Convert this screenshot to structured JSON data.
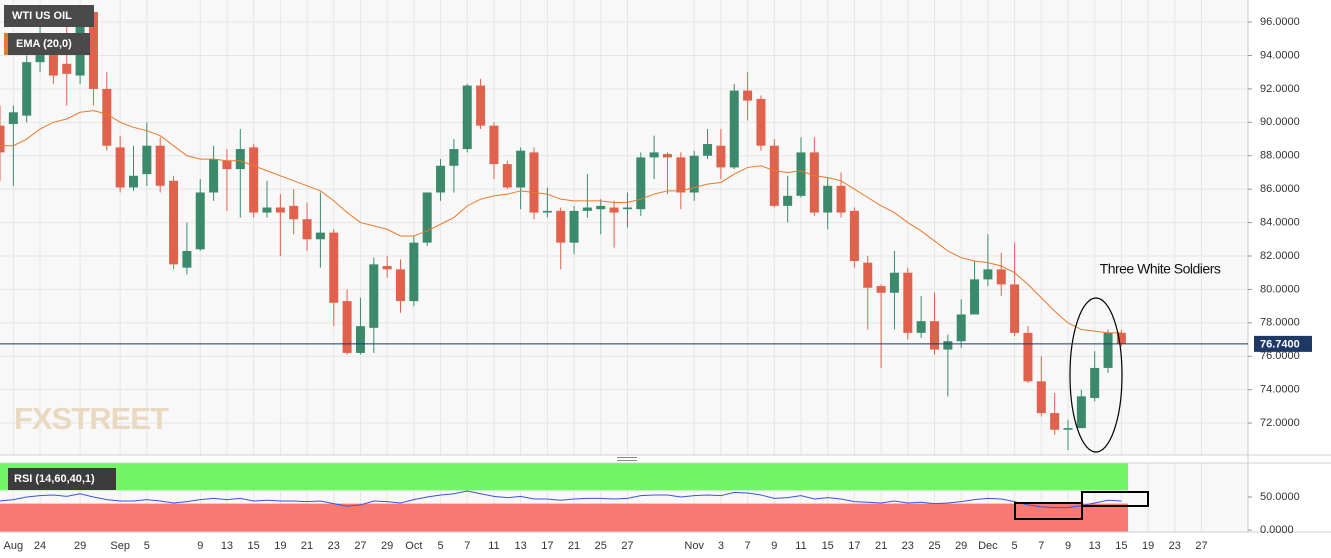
{
  "chart_data": [
    {
      "type": "candlestick",
      "name": "WTI US OIL",
      "watermark": "FXSTREET",
      "annotation": "Three White Soldiers",
      "categories": [
        null,
        "Aug",
        null,
        "24",
        null,
        null,
        "29",
        null,
        null,
        "Sep",
        null,
        "5",
        null,
        null,
        null,
        "9",
        null,
        "13",
        null,
        "15",
        null,
        "19",
        null,
        "21",
        null,
        "23",
        null,
        "27",
        null,
        "29",
        null,
        "Oct",
        null,
        "5",
        null,
        "7",
        null,
        "11",
        null,
        "13",
        null,
        "17",
        null,
        "21",
        null,
        "25",
        null,
        "27",
        null,
        null,
        null,
        null,
        "Nov",
        null,
        "3",
        null,
        "7",
        null,
        "9",
        null,
        "11",
        null,
        "15",
        null,
        "17",
        null,
        "21",
        null,
        "23",
        null,
        "25",
        null,
        "29",
        null,
        "Dec",
        null,
        "5",
        null,
        "7",
        null,
        "9",
        null,
        "13",
        null,
        "15",
        null,
        "19",
        null,
        "23",
        null,
        "27",
        null,
        null,
        null
      ],
      "open": [
        89.8,
        89.9,
        90.4,
        93.6,
        94.9,
        93.5,
        92.8,
        96.6,
        92.0,
        88.5,
        86.1,
        86.9,
        88.6,
        86.5,
        81.3,
        82.4,
        85.8,
        87.7,
        87.2,
        88.5,
        84.6,
        84.9,
        85.0,
        84.2,
        83.0,
        83.4,
        79.3,
        76.2,
        77.7,
        81.4,
        81.2,
        79.3,
        82.8,
        85.8,
        87.4,
        88.4,
        92.2,
        89.8,
        87.5,
        86.1,
        88.2,
        84.6,
        84.7,
        82.8,
        84.7,
        84.8,
        84.9,
        84.8,
        84.8,
        87.9,
        88.1,
        87.9,
        85.8,
        88.0,
        88.6,
        87.3,
        91.9,
        91.4,
        88.6,
        85.0,
        85.6,
        88.2,
        84.6,
        86.2,
        84.7,
        81.6,
        80.2,
        79.8,
        81.0,
        77.4,
        78.1,
        76.4,
        76.9,
        78.5,
        80.6,
        81.2,
        80.3,
        77.4,
        74.5,
        72.6,
        71.6,
        71.7,
        73.5,
        75.3,
        77.4,
        null,
        null,
        null,
        null,
        null,
        null,
        null,
        null,
        null
      ],
      "high": [
        91.0,
        91.0,
        94.0,
        96.0,
        95.3,
        95.8,
        96.6,
        96.9,
        93.0,
        89.2,
        88.6,
        90.0,
        89.1,
        86.8,
        84.0,
        86.6,
        88.6,
        88.4,
        89.6,
        88.7,
        86.5,
        85.7,
        86.0,
        85.2,
        85.8,
        83.6,
        80.0,
        79.5,
        81.9,
        82.0,
        81.8,
        83.2,
        85.8,
        87.8,
        89.0,
        92.3,
        92.6,
        90.0,
        87.7,
        88.5,
        88.5,
        86.1,
        84.9,
        85.0,
        86.9,
        85.4,
        85.3,
        85.8,
        88.2,
        89.2,
        88.2,
        88.2,
        88.3,
        89.6,
        89.6,
        92.3,
        93.0,
        91.6,
        89.0,
        86.8,
        89.1,
        89.1,
        86.7,
        87.0,
        84.9,
        82.0,
        80.3,
        82.3,
        81.3,
        79.6,
        79.8,
        77.3,
        79.4,
        81.7,
        83.3,
        82.2,
        82.8,
        77.8,
        76.0,
        73.8,
        72.2,
        74.0,
        76.3,
        77.6,
        77.6,
        null,
        null,
        null,
        null,
        null,
        null,
        null,
        null,
        null
      ],
      "low": [
        86.5,
        86.2,
        90.0,
        93.0,
        92.3,
        91.0,
        92.3,
        91.0,
        88.3,
        85.8,
        85.9,
        86.2,
        85.8,
        81.2,
        80.9,
        82.3,
        85.3,
        84.7,
        84.3,
        84.3,
        84.3,
        82.0,
        83.3,
        82.3,
        81.3,
        77.8,
        76.1,
        76.1,
        76.2,
        80.7,
        78.6,
        79.0,
        82.6,
        85.3,
        85.8,
        88.2,
        89.6,
        86.6,
        86.0,
        84.8,
        84.2,
        84.3,
        81.2,
        82.1,
        84.3,
        83.3,
        82.5,
        83.7,
        84.4,
        86.6,
        85.7,
        84.8,
        85.3,
        87.8,
        86.6,
        87.2,
        90.1,
        88.3,
        84.9,
        84.0,
        85.5,
        84.4,
        83.6,
        84.3,
        81.3,
        77.6,
        75.3,
        77.6,
        77.0,
        77.1,
        76.1,
        73.6,
        76.5,
        78.5,
        80.2,
        79.6,
        77.2,
        74.4,
        72.4,
        71.3,
        70.4,
        71.7,
        73.3,
        75.0,
        76.6,
        null,
        null,
        null,
        null,
        null,
        null,
        null,
        null,
        null
      ],
      "close": [
        88.2,
        90.6,
        93.6,
        94.9,
        92.8,
        92.9,
        96.4,
        92.0,
        88.6,
        86.1,
        86.8,
        88.6,
        86.2,
        81.5,
        82.3,
        85.8,
        87.8,
        87.2,
        88.4,
        84.6,
        84.9,
        84.6,
        84.2,
        83.0,
        83.4,
        79.2,
        76.2,
        77.8,
        81.5,
        81.2,
        79.3,
        82.8,
        85.8,
        87.4,
        88.4,
        92.2,
        89.8,
        87.5,
        86.1,
        88.3,
        84.6,
        84.7,
        82.8,
        84.7,
        84.9,
        85.0,
        84.6,
        84.9,
        87.9,
        88.2,
        87.9,
        85.8,
        88.0,
        88.7,
        87.3,
        91.9,
        91.3,
        88.6,
        85.0,
        85.6,
        88.2,
        84.6,
        86.2,
        84.6,
        81.7,
        80.1,
        79.8,
        81.0,
        77.4,
        78.1,
        76.4,
        76.9,
        78.5,
        80.6,
        81.2,
        80.3,
        77.4,
        74.5,
        72.6,
        71.6,
        71.7,
        73.6,
        75.3,
        77.4,
        76.74,
        null,
        null,
        null,
        null,
        null,
        null,
        null,
        null,
        null
      ],
      "up_color": "#3b8a6c",
      "down_color": "#e0624d",
      "overlays": [
        {
          "name": "EMA (20,0)",
          "color": "#e8792b",
          "values": [
            88.6,
            88.6,
            89.0,
            89.6,
            90.0,
            90.2,
            90.6,
            90.7,
            90.5,
            90.0,
            89.7,
            89.5,
            89.2,
            88.6,
            88.0,
            87.8,
            87.8,
            87.7,
            87.7,
            87.4,
            87.1,
            86.8,
            86.5,
            86.2,
            85.9,
            85.3,
            84.6,
            84.0,
            83.8,
            83.6,
            83.2,
            83.2,
            83.5,
            83.9,
            84.3,
            85.0,
            85.4,
            85.6,
            85.7,
            85.9,
            85.8,
            85.7,
            85.4,
            85.3,
            85.3,
            85.3,
            85.2,
            85.2,
            85.4,
            85.7,
            85.9,
            85.9,
            86.1,
            86.3,
            86.4,
            86.9,
            87.3,
            87.4,
            87.1,
            87.0,
            87.1,
            86.8,
            86.7,
            86.5,
            86.0,
            85.5,
            85.0,
            84.6,
            84.0,
            83.5,
            82.9,
            82.3,
            81.9,
            81.7,
            81.6,
            81.4,
            81.0,
            80.3,
            79.5,
            78.7,
            78.0,
            77.6,
            77.5,
            77.4,
            77.4,
            null,
            null,
            null,
            null,
            null,
            null,
            null,
            null,
            null
          ]
        }
      ],
      "last_price": {
        "value": 76.74,
        "label": "76.7400"
      },
      "last_price_color": "#1e3966",
      "ylim": [
        70.09,
        97.32
      ],
      "yticks": [
        {
          "value": 72,
          "label": "72.0000"
        },
        {
          "value": 74,
          "label": "74.0000"
        },
        {
          "value": 76,
          "label": "76.0000"
        },
        {
          "value": 78,
          "label": "78.0000"
        },
        {
          "value": 80,
          "label": "80.0000"
        },
        {
          "value": 82,
          "label": "82.0000"
        },
        {
          "value": 84,
          "label": "84.0000"
        },
        {
          "value": 86,
          "label": "86.0000"
        },
        {
          "value": 88,
          "label": "88.0000"
        },
        {
          "value": 90,
          "label": "90.0000"
        },
        {
          "value": 92,
          "label": "92.0000"
        },
        {
          "value": 94,
          "label": "94.0000"
        },
        {
          "value": 96,
          "label": "96.0000"
        }
      ],
      "grid": true
    },
    {
      "type": "line",
      "name": "RSI (14,60,40,1)",
      "color": "#3a56d6",
      "values": [
        44,
        46,
        50,
        52,
        53,
        51,
        55,
        50,
        46,
        44,
        44,
        46,
        44,
        41,
        43,
        46,
        48,
        46,
        48,
        44,
        45,
        44,
        44,
        43,
        44,
        40,
        36,
        38,
        44,
        43,
        41,
        46,
        50,
        53,
        55,
        59,
        55,
        51,
        49,
        51,
        47,
        47,
        45,
        47,
        48,
        48,
        47,
        48,
        52,
        53,
        53,
        50,
        52,
        53,
        52,
        57,
        56,
        53,
        48,
        49,
        52,
        47,
        49,
        47,
        43,
        42,
        41,
        44,
        41,
        42,
        40,
        41,
        43,
        46,
        48,
        47,
        43,
        38,
        35,
        34,
        34,
        37,
        41,
        45,
        44
      ],
      "upper_band": 60,
      "lower_band": 40,
      "upper_color": "#72f566",
      "lower_color": "#f67a73",
      "ylim": [
        -3,
        101.5
      ],
      "yticks": [
        {
          "value": 0,
          "label": "0.0000"
        },
        {
          "value": 50,
          "label": "50.0000"
        }
      ]
    }
  ]
}
